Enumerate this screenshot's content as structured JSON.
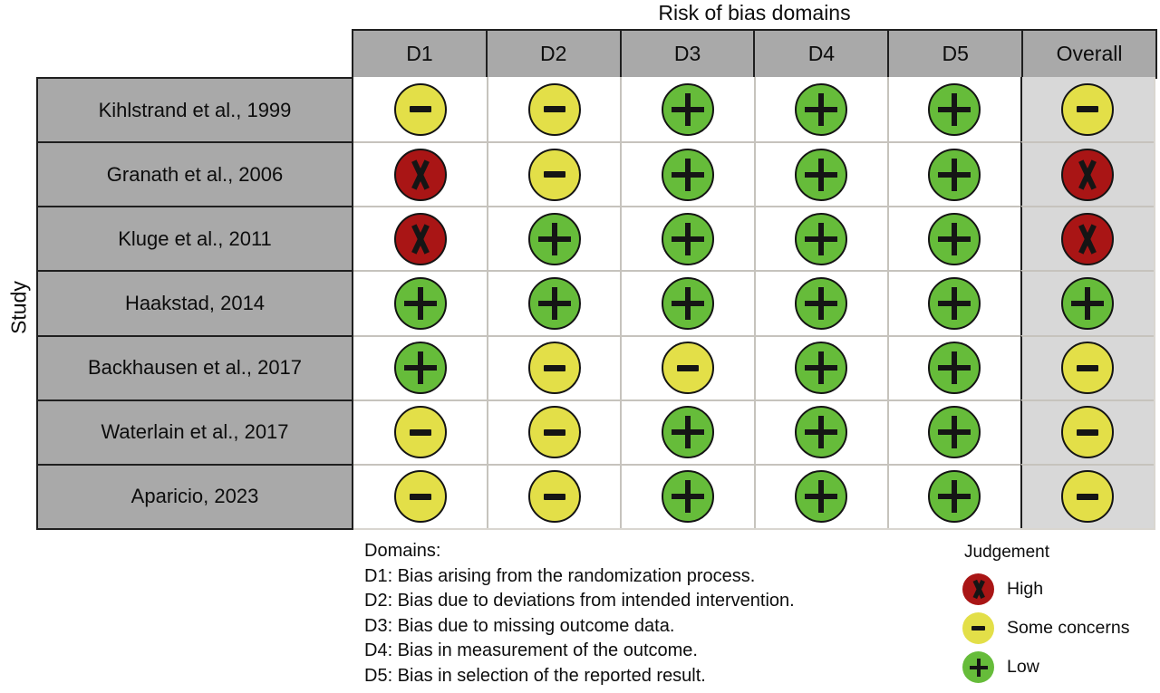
{
  "figure": {
    "title": "Risk of bias domains",
    "row_axis_label": "Study"
  },
  "chart_data": {
    "type": "table",
    "subtype": "risk-of-bias-traffic-light-plot",
    "title": "Risk of bias domains",
    "row_axis_label": "Study",
    "columns": [
      "D1",
      "D2",
      "D3",
      "D4",
      "D5",
      "Overall"
    ],
    "rows": [
      {
        "study": "Kihlstrand et al., 1999",
        "judgements": [
          "Some concerns",
          "Some concerns",
          "Low",
          "Low",
          "Low",
          "Some concerns"
        ]
      },
      {
        "study": "Granath et al., 2006",
        "judgements": [
          "High",
          "Some concerns",
          "Low",
          "Low",
          "Low",
          "High"
        ]
      },
      {
        "study": "Kluge et al., 2011",
        "judgements": [
          "High",
          "Low",
          "Low",
          "Low",
          "Low",
          "High"
        ]
      },
      {
        "study": "Haakstad, 2014",
        "judgements": [
          "Low",
          "Low",
          "Low",
          "Low",
          "Low",
          "Low"
        ]
      },
      {
        "study": "Backhausen et al., 2017",
        "judgements": [
          "Low",
          "Some concerns",
          "Some concerns",
          "Low",
          "Low",
          "Some concerns"
        ]
      },
      {
        "study": "Waterlain et al., 2017",
        "judgements": [
          "Some concerns",
          "Some concerns",
          "Low",
          "Low",
          "Low",
          "Some concerns"
        ]
      },
      {
        "study": "Aparicio, 2023",
        "judgements": [
          "Some concerns",
          "Some concerns",
          "Low",
          "Low",
          "Low",
          "Some concerns"
        ]
      }
    ]
  },
  "domains_note": {
    "heading": "Domains:",
    "lines": [
      "D1: Bias arising from the randomization process.",
      "D2: Bias due to deviations from intended intervention.",
      "D3: Bias due to missing outcome data.",
      "D4: Bias in measurement of the outcome.",
      "D5: Bias in selection of the reported result."
    ]
  },
  "legend": {
    "heading": "Judgement",
    "items": [
      {
        "key": "high",
        "label": "High",
        "symbol": "X",
        "color": "#a91515"
      },
      {
        "key": "some_concerns",
        "label": "Some concerns",
        "symbol": "−",
        "color": "#e3df48"
      },
      {
        "key": "low",
        "label": "Low",
        "symbol": "+",
        "color": "#66bc3a"
      }
    ]
  },
  "colors": {
    "high": "#a91515",
    "some_concerns": "#e3df48",
    "low": "#66bc3a",
    "header_fill": "#a9a9a9",
    "overall_column_fill": "#d8d8d8",
    "cell_border": "#1f1f1f",
    "grid_line": "#c6c3bd"
  }
}
